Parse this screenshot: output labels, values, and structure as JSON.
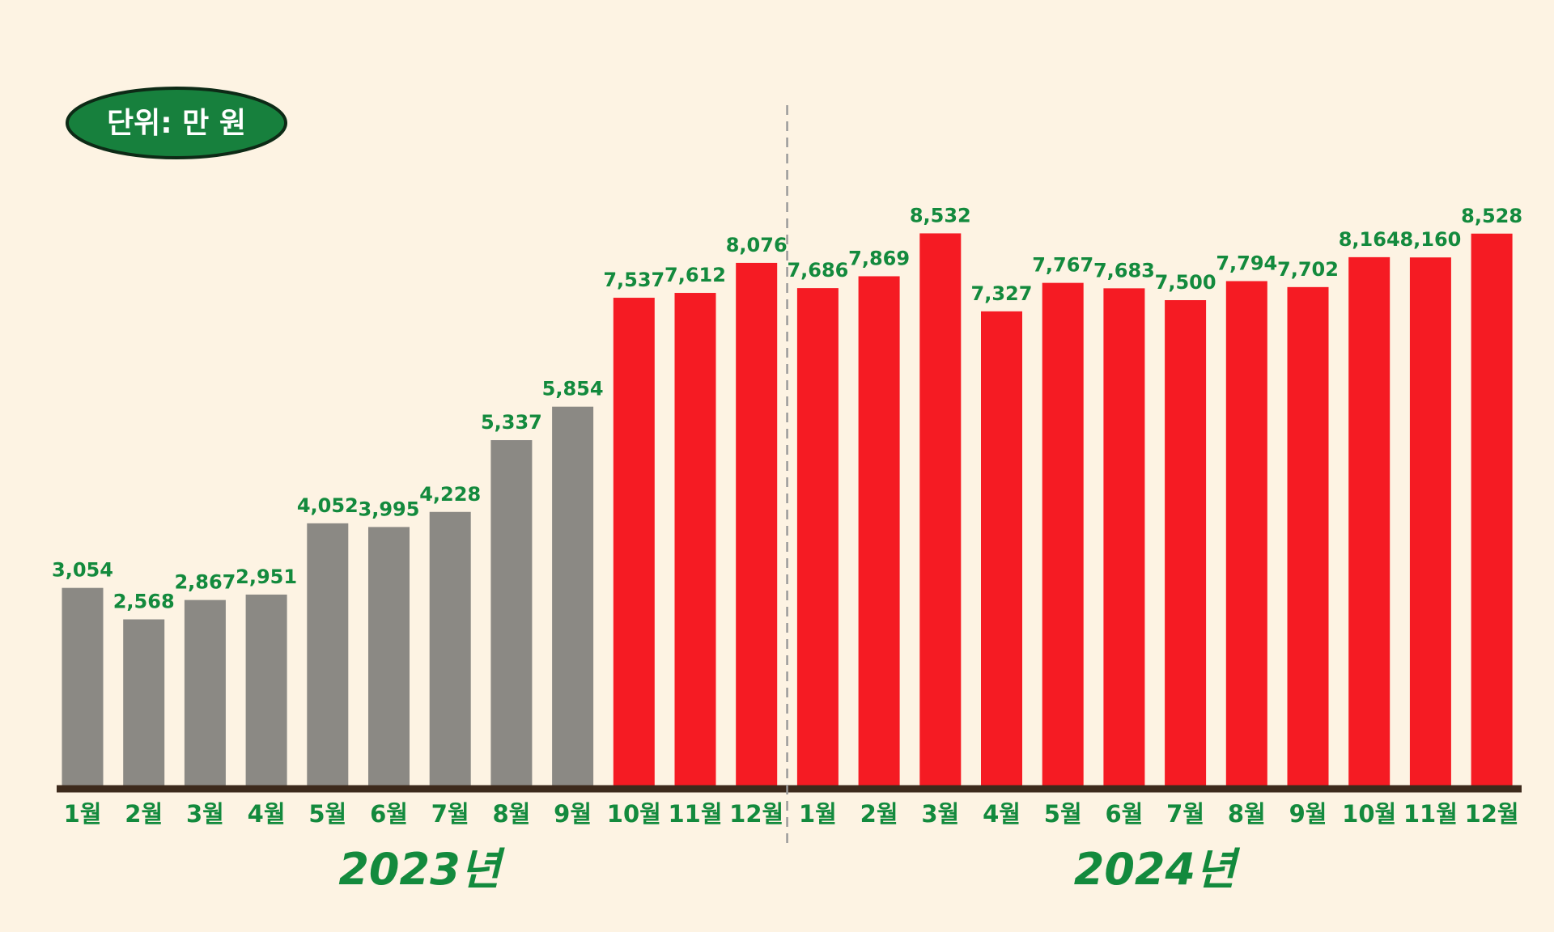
{
  "unit_badge": {
    "label": "단위: 만 원"
  },
  "colors": {
    "background": "#fdf3e3",
    "bar_2023_early": "#8b8984",
    "bar_highlight": "#f51b23",
    "label_text": "#138a3d",
    "badge_fill": "#17803d",
    "baseline": "#3d2a1c",
    "divider": "#9a9a9a"
  },
  "chart_data": {
    "type": "bar",
    "ylim": [
      0,
      9000
    ],
    "grid": false,
    "legend": "none",
    "groups": [
      {
        "label": "2023년",
        "start": 0,
        "end": 11
      },
      {
        "label": "2024년",
        "start": 12,
        "end": 23
      }
    ],
    "categories": [
      "1월",
      "2월",
      "3월",
      "4월",
      "5월",
      "6월",
      "7월",
      "8월",
      "9월",
      "10월",
      "11월",
      "12월",
      "1월",
      "2월",
      "3월",
      "4월",
      "5월",
      "6월",
      "7월",
      "8월",
      "9월",
      "10월",
      "11월",
      "12월"
    ],
    "values": [
      3054,
      2568,
      2867,
      2951,
      4052,
      3995,
      4228,
      5337,
      5854,
      7537,
      7612,
      8076,
      7686,
      7869,
      8532,
      7327,
      7767,
      7683,
      7500,
      7794,
      7702,
      8164,
      8160,
      8528
    ],
    "value_labels": [
      "3,054",
      "2,568",
      "2,867",
      "2,951",
      "4,052",
      "3,995",
      "4,228",
      "5,337",
      "5,854",
      "7,537",
      "7,612",
      "8,076",
      "7,686",
      "7,869",
      "8,532",
      "7,327",
      "7,767",
      "7,683",
      "7,500",
      "7,794",
      "7,702",
      "8,164",
      "8,160",
      "8,528"
    ],
    "gray_count": 9
  }
}
